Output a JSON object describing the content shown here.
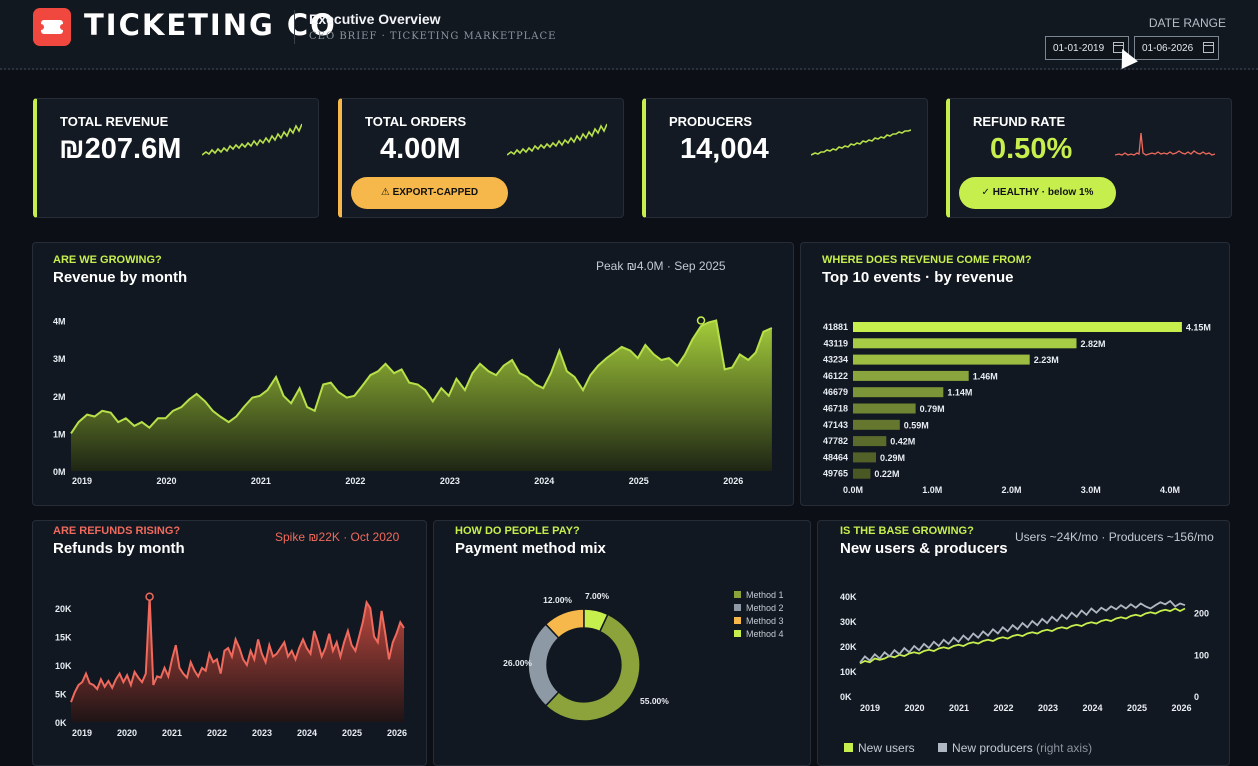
{
  "header": {
    "brand": "TICKETING CO",
    "title": "Executive Overview",
    "subtitle": "CEO BRIEF · TICKETING MARKETPLACE",
    "date_range_label": "DATE RANGE",
    "date_from": "01-01-2019",
    "date_to": "01-06-2026"
  },
  "kpis": [
    {
      "label": "TOTAL REVENUE",
      "value": "₪207.6M",
      "accent": "#c6ef4e"
    },
    {
      "label": "TOTAL ORDERS",
      "value": "4.00M",
      "badge": "⚠ EXPORT-CAPPED",
      "badge_color": "#f6b84a",
      "accent": "#f6b84a"
    },
    {
      "label": "PRODUCERS",
      "value": "14,004",
      "accent": "#c6ef4e"
    },
    {
      "label": "REFUND RATE",
      "value": "0.50%",
      "badge": "✓ HEALTHY · below 1%",
      "badge_color": "#c6ef4e",
      "accent": "#c6ef4e"
    }
  ],
  "revenue_card": {
    "eyebrow": "ARE WE GROWING?",
    "title": "Revenue by month",
    "note": "Peak ₪4.0M · Sep 2025"
  },
  "events_card": {
    "eyebrow": "WHERE DOES REVENUE COME FROM?",
    "title": "Top 10 events · by revenue"
  },
  "refunds_card": {
    "eyebrow": "ARE REFUNDS RISING?",
    "title": "Refunds by month",
    "note": "Spike ₪22K · Oct 2020"
  },
  "payment_card": {
    "eyebrow": "HOW DO PEOPLE PAY?",
    "title": "Payment method mix"
  },
  "users_card": {
    "eyebrow": "IS THE BASE GROWING?",
    "title": "New users & producers",
    "note": "Users ~24K/mo · Producers ~156/mo",
    "legend_users": "New users",
    "legend_producers": "New producers",
    "legend_producers_suffix": "(right axis)"
  },
  "chart_data": [
    {
      "id": "revenue",
      "type": "area",
      "title": "Revenue by month",
      "x_ticks": [
        "2019",
        "2020",
        "2021",
        "2022",
        "2023",
        "2024",
        "2025",
        "2026"
      ],
      "y_ticks": [
        "0M",
        "1M",
        "2M",
        "3M",
        "4M"
      ],
      "ylim": [
        0,
        4.2
      ],
      "xlim": [
        2019,
        2026.4
      ],
      "color": "#b8e04a",
      "x": [
        2019.0,
        2019.08,
        2019.17,
        2019.25,
        2019.33,
        2019.42,
        2019.5,
        2019.58,
        2019.67,
        2019.75,
        2019.83,
        2019.92,
        2020.0,
        2020.08,
        2020.17,
        2020.25,
        2020.33,
        2020.42,
        2020.5,
        2020.58,
        2020.67,
        2020.75,
        2020.83,
        2020.92,
        2021.0,
        2021.08,
        2021.17,
        2021.25,
        2021.33,
        2021.42,
        2021.5,
        2021.58,
        2021.67,
        2021.75,
        2021.83,
        2021.92,
        2022.0,
        2022.08,
        2022.17,
        2022.25,
        2022.33,
        2022.42,
        2022.5,
        2022.58,
        2022.67,
        2022.75,
        2022.83,
        2022.92,
        2023.0,
        2023.08,
        2023.17,
        2023.25,
        2023.33,
        2023.42,
        2023.5,
        2023.58,
        2023.67,
        2023.75,
        2023.83,
        2023.92,
        2024.0,
        2024.08,
        2024.17,
        2024.25,
        2024.33,
        2024.42,
        2024.5,
        2024.58,
        2024.67,
        2024.75,
        2024.83,
        2024.92,
        2025.0,
        2025.08,
        2025.17,
        2025.25,
        2025.33,
        2025.42,
        2025.5,
        2025.58,
        2025.67,
        2025.75,
        2025.83,
        2025.92,
        2026.0,
        2026.08,
        2026.17,
        2026.25,
        2026.33,
        2026.42
      ],
      "values": [
        1.0,
        1.3,
        1.5,
        1.45,
        1.6,
        1.55,
        1.3,
        1.4,
        1.2,
        1.3,
        1.15,
        1.4,
        1.4,
        1.6,
        1.7,
        1.9,
        2.05,
        1.85,
        1.6,
        1.45,
        1.3,
        1.45,
        1.7,
        1.95,
        2.0,
        2.15,
        2.5,
        2.0,
        1.8,
        2.2,
        1.7,
        1.6,
        2.3,
        2.35,
        2.1,
        1.95,
        2.0,
        2.25,
        2.55,
        2.65,
        2.85,
        2.6,
        2.7,
        2.35,
        2.3,
        2.15,
        1.85,
        2.2,
        2.0,
        2.45,
        2.15,
        2.6,
        2.85,
        2.65,
        2.55,
        2.8,
        2.95,
        2.6,
        2.5,
        2.3,
        2.2,
        2.6,
        3.2,
        2.65,
        2.5,
        2.15,
        2.55,
        2.8,
        3.0,
        3.15,
        3.3,
        3.2,
        3.0,
        3.35,
        3.1,
        2.95,
        3.0,
        2.8,
        3.1,
        3.5,
        3.85,
        3.95,
        4.0,
        2.7,
        2.75,
        3.1,
        2.95,
        3.15,
        3.7,
        3.8
      ],
      "peak": {
        "x": 2025.67,
        "y": 4.0
      }
    },
    {
      "id": "top_events",
      "type": "bar",
      "orientation": "horizontal",
      "title": "Top 10 events · by revenue",
      "categories": [
        "41881",
        "43119",
        "43234",
        "46122",
        "46679",
        "46718",
        "47143",
        "47782",
        "48464",
        "49765"
      ],
      "values": [
        4.15,
        2.82,
        2.23,
        1.46,
        1.14,
        0.79,
        0.59,
        0.42,
        0.29,
        0.22
      ],
      "labels": [
        "4.15M",
        "2.82M",
        "2.23M",
        "1.46M",
        "1.14M",
        "0.79M",
        "0.59M",
        "0.42M",
        "0.29M",
        "0.22M"
      ],
      "x_ticks": [
        "0.0M",
        "1.0M",
        "2.0M",
        "3.0M",
        "4.0M"
      ],
      "xlim": [
        0,
        4.0
      ]
    },
    {
      "id": "refunds",
      "type": "area",
      "title": "Refunds by month",
      "x_ticks": [
        "2019",
        "2020",
        "2021",
        "2022",
        "2023",
        "2024",
        "2025",
        "2026"
      ],
      "y_ticks": [
        "0K",
        "5K",
        "10K",
        "15K",
        "20K"
      ],
      "ylim": [
        0,
        23
      ],
      "xlim": [
        2019,
        2026.4
      ],
      "color": "#ef6a5c",
      "values": [
        3.5,
        5.2,
        6.5,
        7.0,
        8.5,
        6.8,
        6.5,
        5.8,
        7.5,
        6.2,
        7.2,
        6.0,
        7.5,
        8.5,
        7.0,
        8.2,
        6.5,
        8.8,
        7.8,
        7.0,
        8.5,
        22.0,
        6.5,
        8.0,
        7.8,
        9.5,
        8.0,
        11.0,
        13.5,
        9.5,
        8.5,
        7.8,
        10.5,
        9.0,
        8.0,
        9.5,
        9.0,
        12.0,
        10.5,
        11.0,
        8.5,
        12.5,
        13.0,
        11.5,
        14.5,
        13.0,
        11.0,
        10.0,
        12.5,
        11.0,
        14.5,
        12.0,
        10.5,
        13.5,
        11.5,
        12.0,
        13.0,
        14.0,
        11.5,
        12.5,
        11.0,
        13.0,
        14.5,
        13.0,
        12.0,
        16.0,
        14.0,
        11.5,
        13.0,
        15.5,
        12.5,
        14.0,
        11.5,
        14.0,
        16.0,
        13.5,
        12.5,
        15.0,
        17.5,
        21.0,
        20.0,
        15.0,
        14.0,
        19.5,
        15.5,
        11.0,
        14.0,
        15.5,
        17.5,
        16.5
      ]
    },
    {
      "id": "payment_mix",
      "type": "pie",
      "title": "Payment method mix",
      "categories": [
        "Method 1",
        "Method 2",
        "Method 3",
        "Method 4"
      ],
      "values": [
        55.0,
        26.0,
        12.0,
        7.0
      ],
      "labels": [
        "55.00%",
        "26.00%",
        "12.00%",
        "7.00%"
      ],
      "colors": [
        "#8ba33a",
        "#8e99a6",
        "#f6b84a",
        "#c6ef4e"
      ]
    },
    {
      "id": "users_producers",
      "type": "line",
      "title": "New users & producers",
      "x_ticks": [
        "2019",
        "2020",
        "2021",
        "2022",
        "2023",
        "2024",
        "2025",
        "2026"
      ],
      "y_ticks": [
        "0K",
        "10K",
        "20K",
        "30K",
        "40K"
      ],
      "y2_ticks": [
        "0",
        "100",
        "200"
      ],
      "ylim": [
        0,
        40
      ],
      "y2lim": [
        0,
        240
      ],
      "series": [
        {
          "name": "New users",
          "color": "#c6ef4e",
          "axis": "left",
          "values": [
            13,
            14,
            13.5,
            15,
            14.5,
            15,
            16,
            15.5,
            16.5,
            16,
            17,
            17.5,
            17,
            18,
            18.5,
            18,
            19,
            19.5,
            19,
            20,
            20.5,
            20,
            21,
            21.5,
            21,
            22,
            22.5,
            22,
            23,
            23.5,
            23,
            24,
            24.5,
            24,
            25,
            25.5,
            25,
            26,
            26.5,
            26,
            27,
            27.5,
            27,
            28,
            28.5,
            28,
            29,
            29.5,
            29,
            30,
            30.5,
            30,
            31,
            31.5,
            31,
            32,
            32.5,
            32,
            33,
            33.5,
            33,
            34,
            34.5,
            34,
            35,
            34,
            35
          ]
        },
        {
          "name": "New producers",
          "color": "#aeb7c2",
          "axis": "right",
          "values": [
            80,
            95,
            85,
            100,
            90,
            105,
            95,
            110,
            100,
            115,
            105,
            120,
            110,
            125,
            115,
            130,
            120,
            135,
            125,
            140,
            130,
            145,
            135,
            150,
            140,
            155,
            145,
            160,
            150,
            165,
            155,
            170,
            160,
            175,
            165,
            180,
            170,
            185,
            175,
            190,
            180,
            195,
            185,
            200,
            190,
            205,
            195,
            210,
            200,
            212,
            205,
            215,
            208,
            218,
            210,
            220,
            212,
            222,
            215,
            210,
            218,
            225,
            220,
            228,
            215,
            222,
            218
          ]
        }
      ]
    }
  ]
}
